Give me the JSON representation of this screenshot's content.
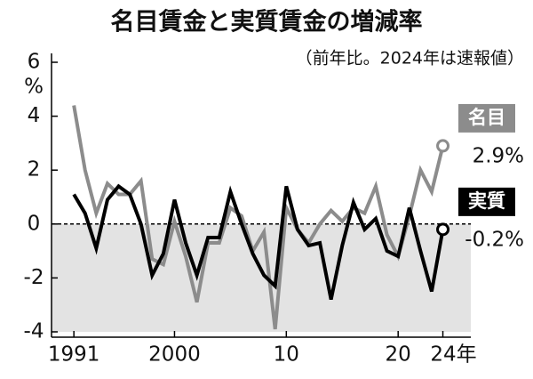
{
  "chart_data": {
    "type": "line",
    "title": "名目賃金と実質賃金の増減率",
    "subtitle": "（前年比。2024年は速報値）",
    "y_unit": "%",
    "x": [
      1991,
      1992,
      1993,
      1994,
      1995,
      1996,
      1997,
      1998,
      1999,
      2000,
      2001,
      2002,
      2003,
      2004,
      2005,
      2006,
      2007,
      2008,
      2009,
      2010,
      2011,
      2012,
      2013,
      2014,
      2015,
      2016,
      2017,
      2018,
      2019,
      2020,
      2021,
      2022,
      2023,
      2024
    ],
    "series": [
      {
        "name": "名目",
        "color": "#8c8c8c",
        "values": [
          4.4,
          2.0,
          0.4,
          1.5,
          1.1,
          1.1,
          1.6,
          -1.3,
          -1.5,
          0.1,
          -1.2,
          -2.9,
          -0.7,
          -0.7,
          0.6,
          0.3,
          -1.0,
          -0.3,
          -3.9,
          0.6,
          -0.2,
          -0.7,
          0.0,
          0.5,
          0.1,
          0.6,
          0.4,
          1.4,
          -0.4,
          -1.2,
          0.3,
          2.0,
          1.2,
          2.9
        ],
        "value_labels": [
          null,
          null,
          null,
          null,
          null,
          null,
          null,
          null,
          null,
          null,
          null,
          null,
          null,
          null,
          null,
          null,
          null,
          null,
          null,
          null,
          null,
          null,
          null,
          null,
          null,
          null,
          null,
          null,
          null,
          null,
          null,
          null,
          null,
          "2.9%"
        ]
      },
      {
        "name": "実質",
        "color": "#000000",
        "values": [
          1.1,
          0.4,
          -0.9,
          0.9,
          1.4,
          1.1,
          0.0,
          -1.9,
          -1.1,
          0.9,
          -0.7,
          -1.9,
          -0.5,
          -0.5,
          1.2,
          0.0,
          -1.1,
          -1.9,
          -2.3,
          1.4,
          -0.2,
          -0.8,
          -0.7,
          -2.8,
          -0.8,
          0.8,
          -0.2,
          0.2,
          -1.0,
          -1.2,
          0.6,
          -1.0,
          -2.5,
          -0.2
        ],
        "value_labels": [
          null,
          null,
          null,
          null,
          null,
          null,
          null,
          null,
          null,
          null,
          null,
          null,
          null,
          null,
          null,
          null,
          null,
          null,
          null,
          null,
          null,
          null,
          null,
          null,
          null,
          null,
          null,
          null,
          null,
          null,
          null,
          null,
          null,
          "-0.2%"
        ]
      }
    ],
    "xlim": [
      1989,
      2026.5
    ],
    "xticks": [
      1991,
      2000,
      {
        "value": 2010,
        "label": "10"
      },
      {
        "value": 2020,
        "label": "20"
      },
      {
        "value": 2024,
        "label": "24年"
      }
    ],
    "ylim": [
      -4,
      6
    ],
    "yticks": [
      -4,
      -2,
      0,
      2,
      4,
      6
    ],
    "shade_below_zero": true,
    "zero_line": "dashed"
  }
}
